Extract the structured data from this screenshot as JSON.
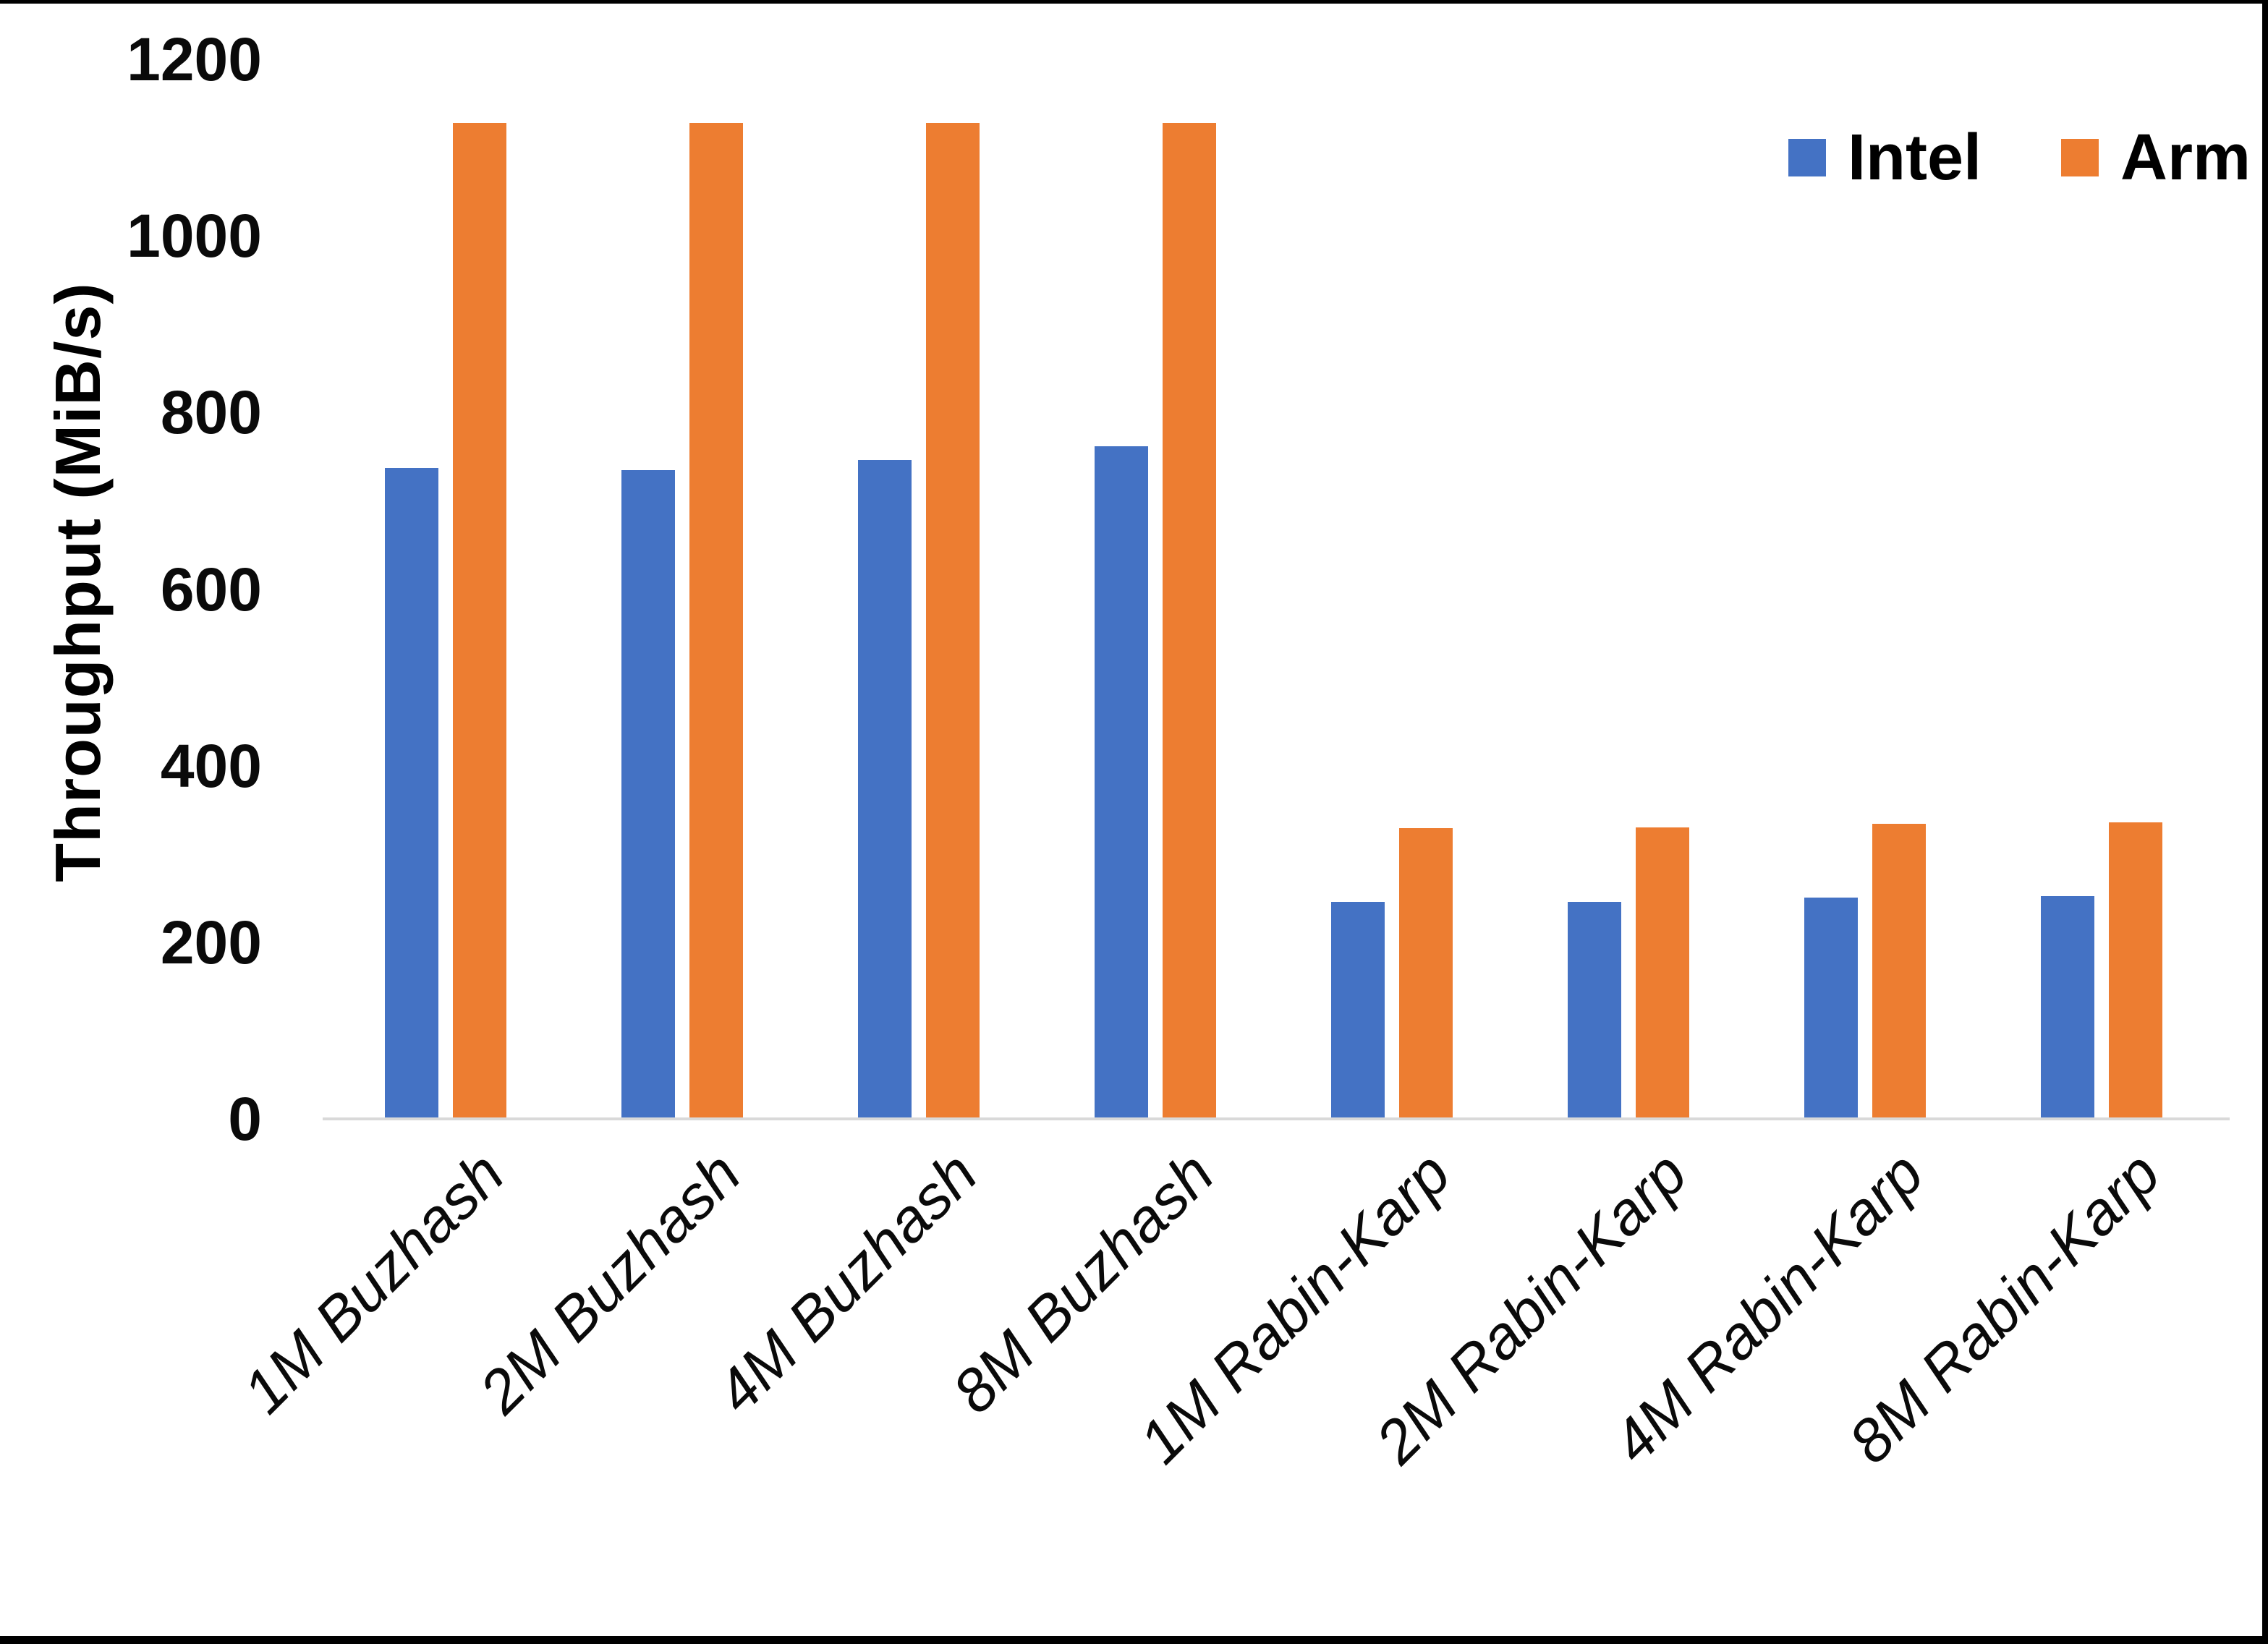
{
  "chart_data": {
    "type": "bar",
    "ylabel": "Throughput (MiB/s)",
    "xlabel": "",
    "ylim": [
      0,
      1200
    ],
    "yticks": [
      0,
      200,
      400,
      600,
      800,
      1000,
      1200
    ],
    "grid": false,
    "legend_position": "top-right",
    "categories": [
      "1M Buzhash",
      "2M Buzhash",
      "4M Buzhash",
      "8M Buzhash",
      "1M Rabin-Karp",
      "2M Rabin-Karp",
      "4M Rabin-Karp",
      "8M Rabin-Karp"
    ],
    "series": [
      {
        "name": "Intel",
        "color": "#4472C4",
        "values": [
          737,
          735,
          746,
          762,
          246,
          246,
          251,
          252
        ]
      },
      {
        "name": "Arm",
        "color": "#ED7D31",
        "values": [
          1128,
          1128,
          1128,
          1128,
          329,
          330,
          334,
          336
        ]
      }
    ]
  },
  "colors": {
    "axis_line": "#D9D9D9",
    "text": "#000000",
    "background": "#FFFFFF",
    "frame_border": "#000000"
  }
}
